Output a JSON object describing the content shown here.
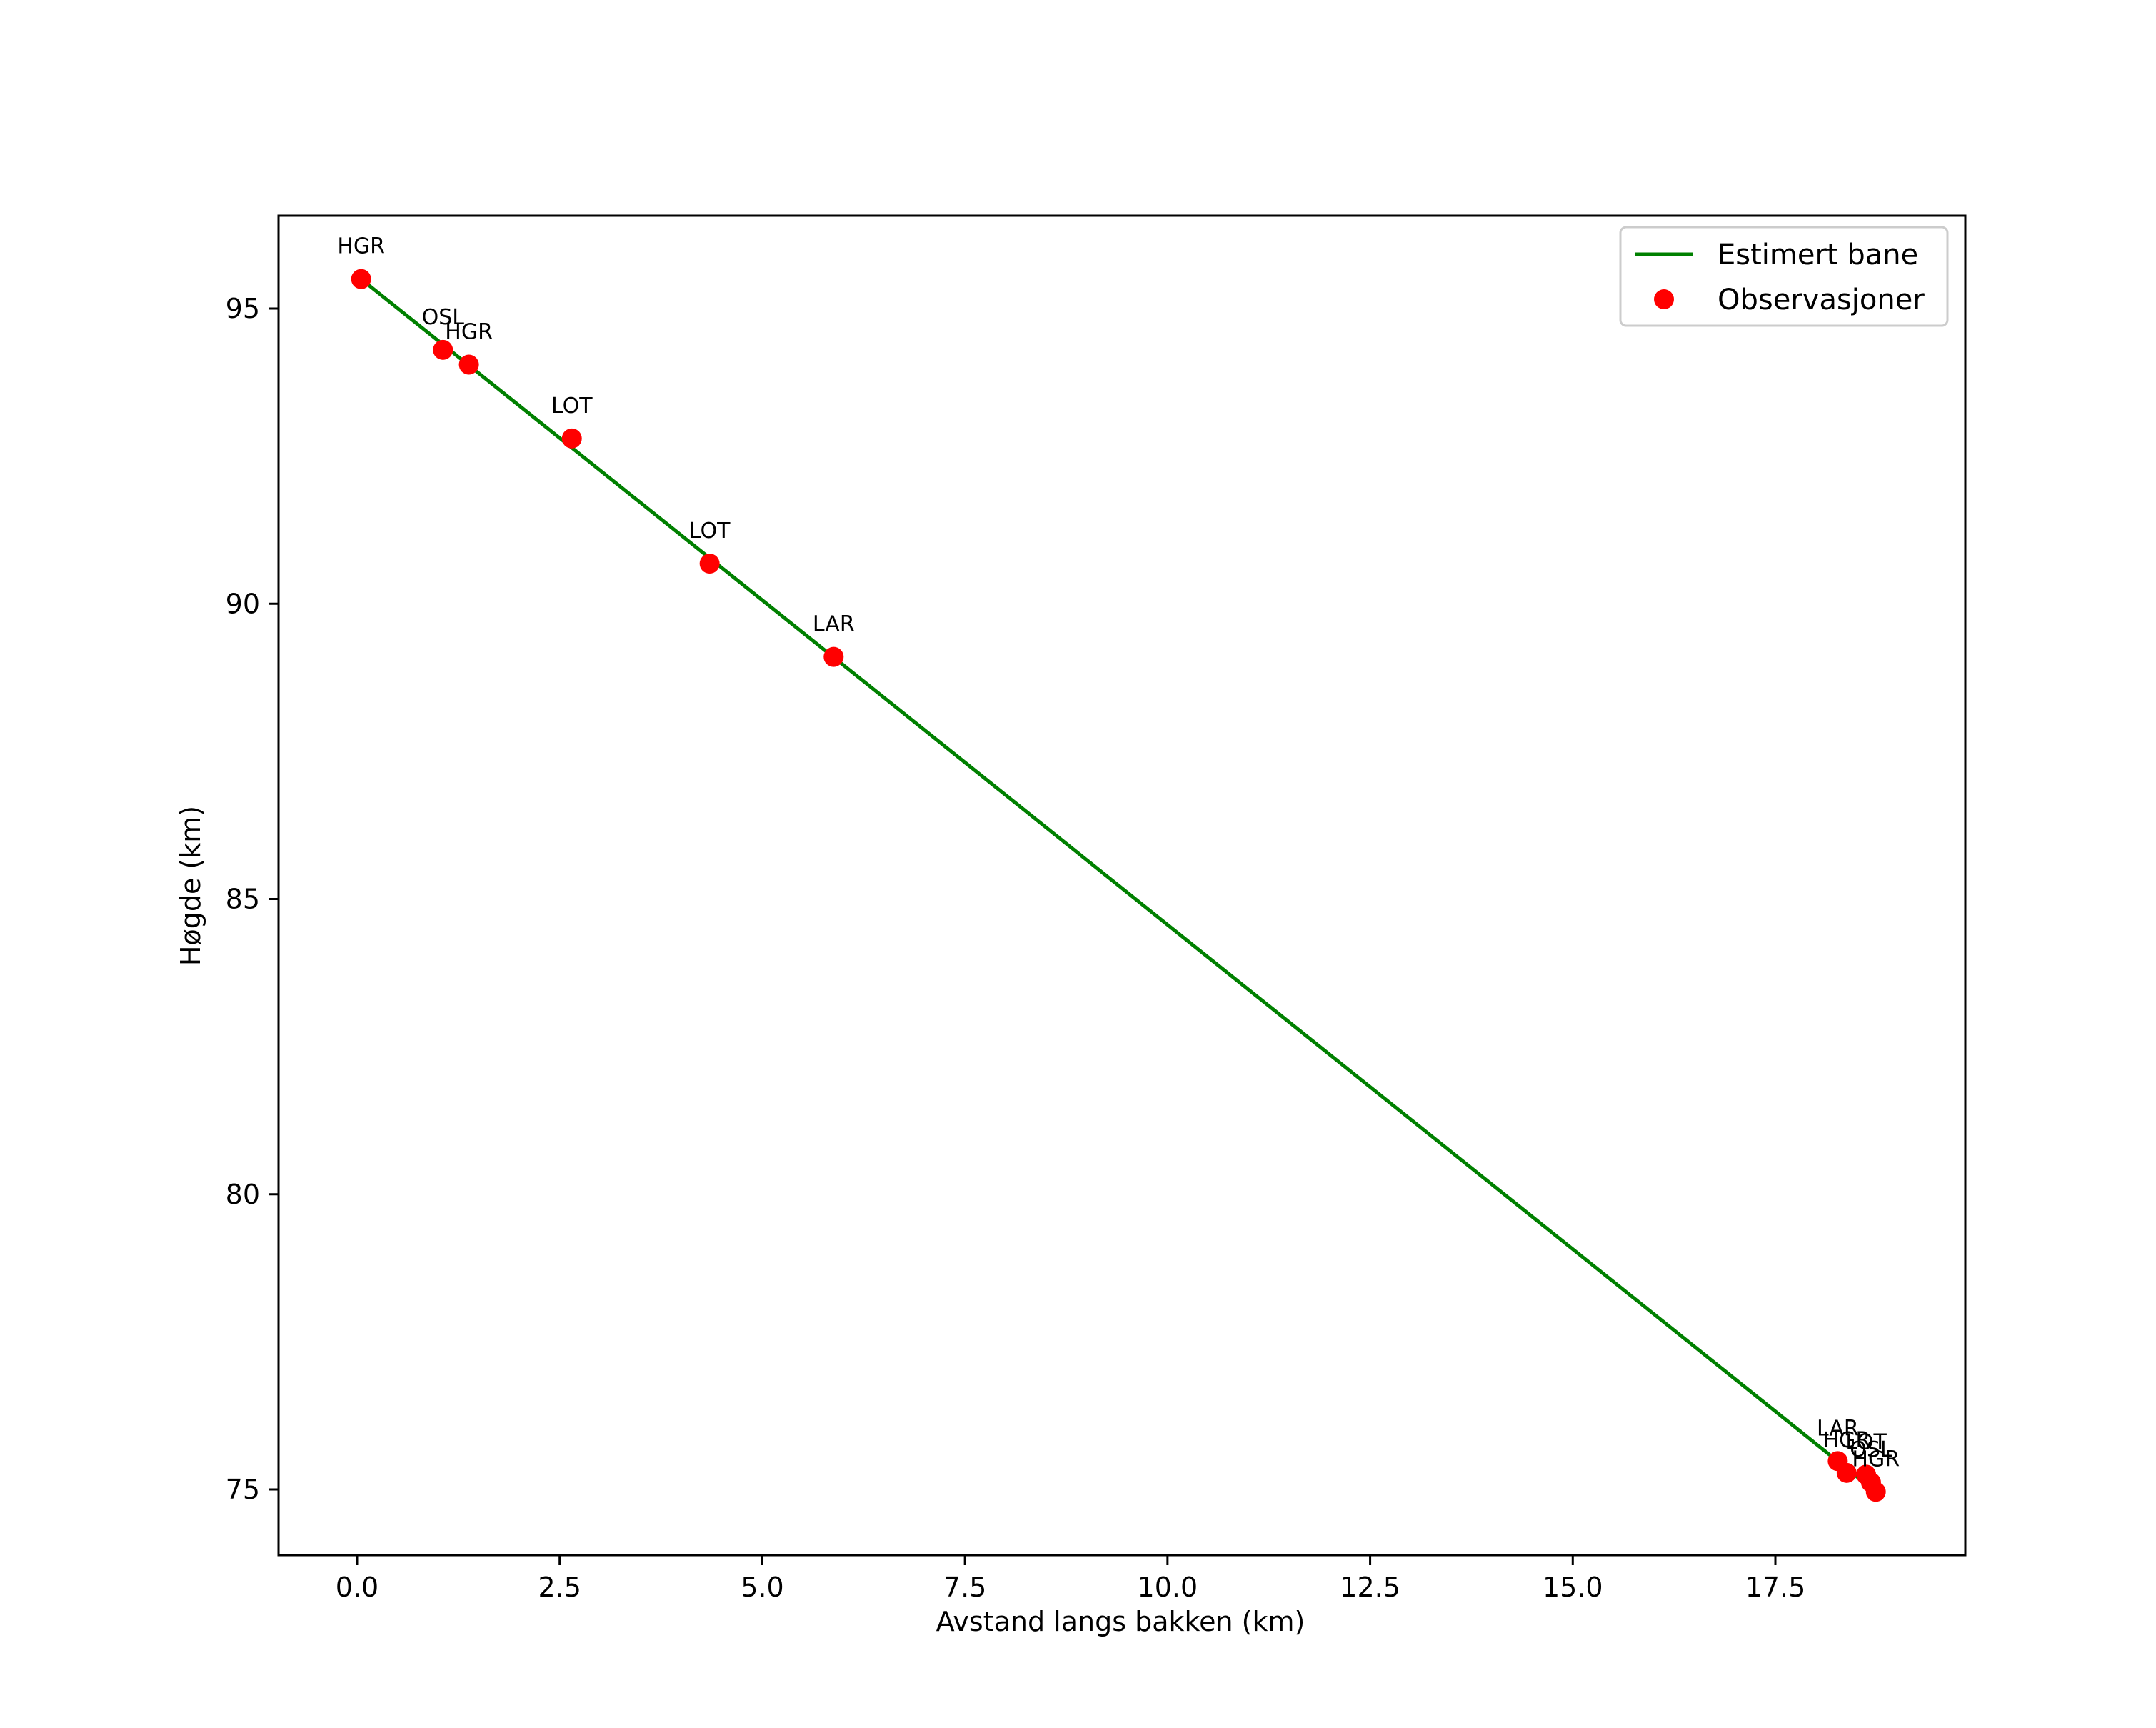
{
  "chart_data": {
    "type": "line+scatter",
    "title": "",
    "xlabel": "Avstand langs bakken (km)",
    "ylabel": "Høgde (km)",
    "xlim": [
      -0.94,
      19.3
    ],
    "ylim": [
      74.0,
      96.6
    ],
    "grid": false,
    "legend_position": "upper right",
    "x_ticks": [
      0.0,
      2.5,
      5.0,
      7.5,
      10.0,
      12.5,
      15.0,
      17.5
    ],
    "x_tick_labels": [
      "0.0",
      "2.5",
      "5.0",
      "7.5",
      "10.0",
      "12.5",
      "15.0",
      "17.5"
    ],
    "y_ticks": [
      75,
      80,
      85,
      90,
      95
    ],
    "y_tick_labels": [
      "75",
      "80",
      "85",
      "90",
      "95"
    ],
    "series": [
      {
        "name": "Estimert bane",
        "kind": "line",
        "color": "#008000",
        "x": [
          0.05,
          18.74
        ],
        "y": [
          95.5,
          74.96
        ]
      },
      {
        "name": "Observasjoner",
        "kind": "scatter",
        "color": "#ff0000",
        "points": [
          {
            "label": "HGR",
            "x": 0.05,
            "y": 95.5
          },
          {
            "label": "OSL",
            "x": 1.06,
            "y": 94.3
          },
          {
            "label": "HGR",
            "x": 1.38,
            "y": 94.05
          },
          {
            "label": "LOT",
            "x": 2.65,
            "y": 92.8
          },
          {
            "label": "LOT",
            "x": 4.35,
            "y": 90.68
          },
          {
            "label": "LAR",
            "x": 5.88,
            "y": 89.1
          },
          {
            "label": "LAR",
            "x": 18.27,
            "y": 75.48
          },
          {
            "label": "HGR",
            "x": 18.38,
            "y": 75.28
          },
          {
            "label": "LOT",
            "x": 18.62,
            "y": 75.25
          },
          {
            "label": "OSL",
            "x": 18.68,
            "y": 75.12
          },
          {
            "label": "HGR",
            "x": 18.74,
            "y": 74.96
          }
        ]
      }
    ]
  },
  "legend": {
    "items": [
      {
        "label": "Estimert bane",
        "symbol": "line",
        "color": "#008000"
      },
      {
        "label": "Observasjoner",
        "symbol": "dot",
        "color": "#ff0000"
      }
    ]
  }
}
